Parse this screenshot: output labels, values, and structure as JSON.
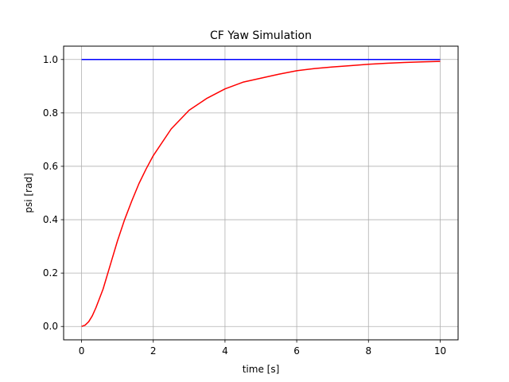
{
  "chart_data": {
    "type": "line",
    "title": "CF Yaw Simulation",
    "xlabel": "time [s]",
    "ylabel": "psi [rad]",
    "xlim": [
      -0.5,
      10.5
    ],
    "ylim": [
      -0.05,
      1.05
    ],
    "xticks": [
      0,
      2,
      4,
      6,
      8,
      10
    ],
    "yticks": [
      0.0,
      0.2,
      0.4,
      0.6,
      0.8,
      1.0
    ],
    "xtick_labels": [
      "0",
      "2",
      "4",
      "6",
      "8",
      "10"
    ],
    "ytick_labels": [
      "0.0",
      "0.2",
      "0.4",
      "0.6",
      "0.8",
      "1.0"
    ],
    "grid": true,
    "legend": "none",
    "series": [
      {
        "color": "#0000ff",
        "x": [
          0,
          10
        ],
        "y": [
          1.0,
          1.0
        ]
      },
      {
        "color": "#ff0000",
        "x": [
          0,
          0.1,
          0.2,
          0.3,
          0.4,
          0.5,
          0.6,
          0.8,
          1.0,
          1.2,
          1.4,
          1.6,
          1.8,
          2.0,
          2.5,
          3.0,
          3.5,
          4.0,
          4.5,
          5.0,
          5.5,
          6.0,
          6.5,
          7.0,
          7.5,
          8.0,
          8.5,
          9.0,
          9.5,
          10.0
        ],
        "y": [
          0.0,
          0.005,
          0.018,
          0.04,
          0.07,
          0.105,
          0.14,
          0.23,
          0.32,
          0.4,
          0.47,
          0.535,
          0.59,
          0.64,
          0.74,
          0.81,
          0.855,
          0.89,
          0.915,
          0.93,
          0.945,
          0.958,
          0.966,
          0.972,
          0.977,
          0.982,
          0.986,
          0.989,
          0.991,
          0.993
        ]
      }
    ]
  }
}
